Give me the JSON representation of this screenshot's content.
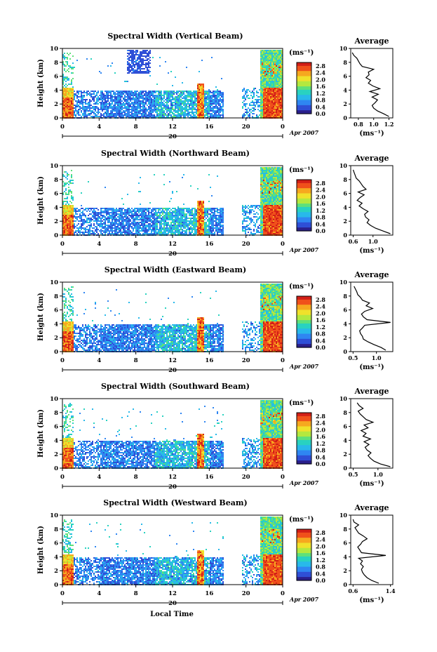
{
  "figure": {
    "xlabel": "Local Time",
    "date_label": "Apr 2007",
    "date_day": "20",
    "cb_unit": "(ms⁻¹)",
    "avg_title": "Average",
    "avg_xlabel": "(ms⁻¹)",
    "ylabel": "Height (km)"
  },
  "colors": {
    "scale": [
      "#2a1f8c",
      "#2f4fd6",
      "#2f86f2",
      "#28b9ea",
      "#29d2c0",
      "#5fe07a",
      "#b4e83f",
      "#f0e12b",
      "#f6a81f",
      "#f0501b",
      "#d21f17"
    ],
    "background": "#ffffff"
  },
  "chart_data": [
    {
      "type": "heatmap",
      "title": "Spectral Width (Vertical Beam)",
      "xlabel": "Local Time",
      "ylabel": "Height (km)",
      "x_ticks": [
        "0",
        "4",
        "8",
        "12",
        "16",
        "20",
        "0"
      ],
      "y_ticks": [
        "0",
        "2",
        "4",
        "6",
        "8",
        "10"
      ],
      "xlim": [
        0,
        24
      ],
      "ylim": [
        0,
        10
      ],
      "colorbar": {
        "label": "(ms⁻¹)",
        "ticks": [
          "0.0",
          "0.4",
          "0.8",
          "1.2",
          "1.6",
          "2.0",
          "2.4",
          "2.8"
        ],
        "range": [
          0,
          3.0
        ]
      },
      "date": "20 Apr 2007",
      "average_profile": {
        "title": "Average",
        "xlabel": "(ms⁻¹)",
        "x_ticks": [
          "0.8",
          "1.0",
          "1.2"
        ],
        "xlim": [
          0.7,
          1.25
        ],
        "y_ticks": [
          "0",
          "2",
          "4",
          "6",
          "8",
          "10"
        ],
        "ylim": [
          0,
          10
        ],
        "heights": [
          0.2,
          0.6,
          1.0,
          1.4,
          1.8,
          2.2,
          2.6,
          3.0,
          3.4,
          3.8,
          4.2,
          4.6,
          5.0,
          5.4,
          5.8,
          6.2,
          6.6,
          7.0,
          7.4,
          7.8,
          8.2,
          8.6,
          9.0,
          9.4
        ],
        "values": [
          1.2,
          1.13,
          1.05,
          1.0,
          0.98,
          1.02,
          1.05,
          0.98,
          1.06,
          0.95,
          1.08,
          0.99,
          0.93,
          0.96,
          0.9,
          0.94,
          0.93,
          1.0,
          0.85,
          0.82,
          0.8,
          0.78,
          0.74,
          0.72
        ]
      }
    },
    {
      "type": "heatmap",
      "title": "Spectral Width (Northward Beam)",
      "xlabel": "Local Time",
      "ylabel": "Height (km)",
      "x_ticks": [
        "0",
        "4",
        "8",
        "12",
        "16",
        "20",
        "0"
      ],
      "y_ticks": [
        "0",
        "2",
        "4",
        "6",
        "8",
        "10"
      ],
      "xlim": [
        0,
        24
      ],
      "ylim": [
        0,
        10
      ],
      "colorbar": {
        "label": "(ms⁻¹)",
        "ticks": [
          "0.0",
          "0.4",
          "0.8",
          "1.2",
          "1.6",
          "2.0",
          "2.4",
          "2.8"
        ],
        "range": [
          0,
          3.0
        ]
      },
      "date": "20 Apr 2007",
      "average_profile": {
        "title": "Average",
        "xlabel": "(ms⁻¹)",
        "x_ticks": [
          "0.6",
          "1.0"
        ],
        "xlim": [
          0.55,
          1.4
        ],
        "y_ticks": [
          "0",
          "2",
          "4",
          "6",
          "8",
          "10"
        ],
        "ylim": [
          0,
          10
        ],
        "heights": [
          0.2,
          0.6,
          1.0,
          1.4,
          1.8,
          2.2,
          2.6,
          3.0,
          3.4,
          3.8,
          4.2,
          4.6,
          5.0,
          5.4,
          5.8,
          6.2,
          6.6,
          7.0,
          7.4,
          7.8,
          8.2,
          8.6,
          9.0,
          9.4
        ],
        "values": [
          1.35,
          1.2,
          1.05,
          0.95,
          0.88,
          0.92,
          0.85,
          0.83,
          0.9,
          0.8,
          0.72,
          0.78,
          0.68,
          0.74,
          0.82,
          0.7,
          0.86,
          0.8,
          0.76,
          0.72,
          0.66,
          0.64,
          0.62,
          0.6
        ]
      }
    },
    {
      "type": "heatmap",
      "title": "Spectral Width (Eastward Beam)",
      "xlabel": "Local Time",
      "ylabel": "Height (km)",
      "x_ticks": [
        "0",
        "4",
        "8",
        "12",
        "16",
        "20",
        "0"
      ],
      "y_ticks": [
        "0",
        "2",
        "4",
        "6",
        "8",
        "10"
      ],
      "xlim": [
        0,
        24
      ],
      "ylim": [
        0,
        10
      ],
      "colorbar": {
        "label": "(ms⁻¹)",
        "ticks": [
          "0.0",
          "0.4",
          "0.8",
          "1.2",
          "1.6",
          "2.0",
          "2.4",
          "2.8"
        ],
        "range": [
          0,
          3.0
        ]
      },
      "date": "20 Apr 2007",
      "average_profile": {
        "title": "Average",
        "xlabel": "(ms⁻¹)",
        "x_ticks": [
          "0.5",
          "1.0"
        ],
        "xlim": [
          0.45,
          1.35
        ],
        "y_ticks": [
          "0",
          "2",
          "4",
          "6",
          "8",
          "10"
        ],
        "ylim": [
          0,
          10
        ],
        "heights": [
          0.2,
          0.6,
          1.0,
          1.4,
          1.8,
          2.2,
          2.6,
          3.0,
          3.4,
          3.8,
          4.2,
          4.6,
          5.0,
          5.4,
          5.8,
          6.2,
          6.6,
          7.0,
          7.4,
          7.8,
          8.2,
          8.6,
          9.0,
          9.4
        ],
        "values": [
          1.2,
          1.1,
          0.95,
          0.82,
          0.72,
          0.7,
          0.66,
          0.64,
          0.7,
          0.75,
          1.3,
          0.8,
          0.72,
          0.68,
          0.75,
          0.92,
          0.78,
          0.85,
          0.7,
          0.66,
          0.6,
          0.58,
          0.55,
          0.52
        ]
      }
    },
    {
      "type": "heatmap",
      "title": "Spectral Width (Southward Beam)",
      "xlabel": "Local Time",
      "ylabel": "Height (km)",
      "x_ticks": [
        "0",
        "4",
        "8",
        "12",
        "16",
        "20",
        "0"
      ],
      "y_ticks": [
        "0",
        "2",
        "4",
        "6",
        "8",
        "10"
      ],
      "xlim": [
        0,
        24
      ],
      "ylim": [
        0,
        10
      ],
      "colorbar": {
        "label": "(ms⁻¹)",
        "ticks": [
          "0.0",
          "0.4",
          "0.8",
          "1.2",
          "1.6",
          "2.0",
          "2.4",
          "2.8"
        ],
        "range": [
          0,
          3.0
        ]
      },
      "date": "20 Apr 2007",
      "average_profile": {
        "title": "Average",
        "xlabel": "(ms⁻¹)",
        "x_ticks": [
          "0.5",
          "1.0"
        ],
        "xlim": [
          0.45,
          1.3
        ],
        "y_ticks": [
          "0",
          "2",
          "4",
          "6",
          "8",
          "10"
        ],
        "ylim": [
          0,
          10
        ],
        "heights": [
          0.2,
          0.6,
          1.0,
          1.4,
          1.8,
          2.2,
          2.6,
          3.0,
          3.4,
          3.8,
          4.2,
          4.6,
          5.0,
          5.4,
          5.8,
          6.2,
          6.6,
          7.0,
          7.4,
          7.8,
          8.2,
          8.6,
          9.0,
          9.4
        ],
        "values": [
          1.25,
          1.05,
          0.92,
          0.85,
          0.8,
          0.86,
          0.78,
          0.74,
          0.82,
          0.72,
          0.85,
          0.7,
          0.76,
          0.66,
          0.8,
          0.72,
          0.9,
          0.76,
          0.7,
          0.64,
          0.6,
          0.7,
          0.62,
          0.58
        ]
      }
    },
    {
      "type": "heatmap",
      "title": "Spectral Width (Westward Beam)",
      "xlabel": "Local Time",
      "ylabel": "Height (km)",
      "x_ticks": [
        "0",
        "4",
        "8",
        "12",
        "16",
        "20",
        "0"
      ],
      "y_ticks": [
        "0",
        "2",
        "4",
        "6",
        "8",
        "10"
      ],
      "xlim": [
        0,
        24
      ],
      "ylim": [
        0,
        10
      ],
      "colorbar": {
        "label": "(ms⁻¹)",
        "ticks": [
          "0.0",
          "0.4",
          "0.8",
          "1.2",
          "1.6",
          "2.0",
          "2.4",
          "2.8"
        ],
        "range": [
          0,
          3.0
        ]
      },
      "date": "20 Apr 2007",
      "average_profile": {
        "title": "Average",
        "xlabel": "(ms⁻¹)",
        "x_ticks": [
          "0.6",
          "1.4"
        ],
        "xlim": [
          0.55,
          1.45
        ],
        "y_ticks": [
          "0",
          "2",
          "4",
          "6",
          "8",
          "10"
        ],
        "ylim": [
          0,
          10
        ],
        "heights": [
          0.2,
          0.6,
          1.0,
          1.4,
          1.8,
          2.2,
          2.6,
          3.0,
          3.4,
          3.8,
          4.2,
          4.6,
          5.0,
          5.4,
          5.8,
          6.2,
          6.6,
          7.0,
          7.4,
          7.8,
          8.2,
          8.6,
          9.0,
          9.4
        ],
        "values": [
          1.15,
          1.0,
          0.9,
          0.84,
          0.8,
          0.78,
          0.82,
          0.76,
          0.8,
          0.72,
          1.3,
          0.78,
          0.74,
          0.7,
          0.76,
          0.8,
          0.9,
          0.82,
          0.72,
          0.68,
          0.64,
          0.72,
          0.62,
          0.6
        ]
      }
    }
  ]
}
